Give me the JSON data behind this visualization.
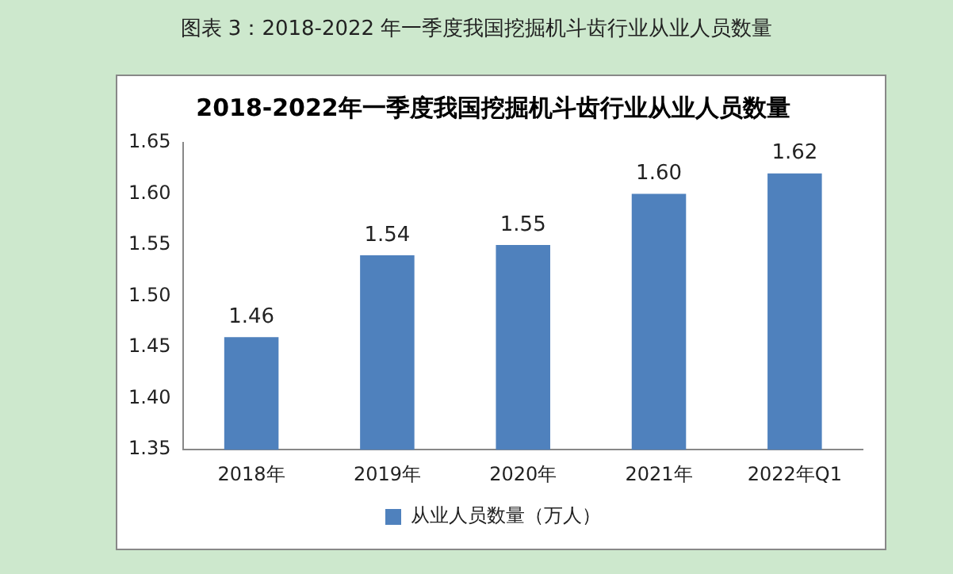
{
  "chart_data": {
    "type": "bar",
    "title": "2018-2022年一季度我国挖掘机斗齿行业从业人员数量",
    "annotations": [
      "图表 3：2018-2022 年一季度我国挖掘机斗齿行业从业人员数量"
    ],
    "categories": [
      "2018年",
      "2019年",
      "2020年",
      "2021年",
      "2022年Q1"
    ],
    "series": [
      {
        "name": "从业人员数量（万人）",
        "color": "#4f81bd",
        "values": [
          1.46,
          1.54,
          1.55,
          1.6,
          1.62
        ],
        "value_labels": [
          "1.46",
          "1.54",
          "1.55",
          "1.60",
          "1.62"
        ]
      }
    ],
    "ylim": [
      1.35,
      1.65
    ],
    "yticks": [
      {
        "value": 1.35,
        "label": "1.35"
      },
      {
        "value": 1.4,
        "label": "1.40"
      },
      {
        "value": 1.45,
        "label": "1.45"
      },
      {
        "value": 1.5,
        "label": "1.50"
      },
      {
        "value": 1.55,
        "label": "1.55"
      },
      {
        "value": 1.6,
        "label": "1.60"
      },
      {
        "value": 1.65,
        "label": "1.65"
      }
    ],
    "grid": false,
    "legend": "bottom"
  }
}
